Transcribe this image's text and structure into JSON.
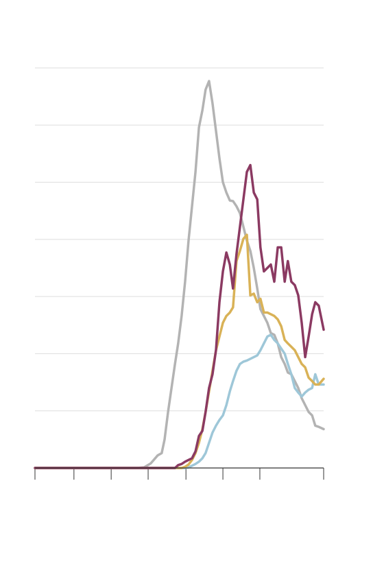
{
  "chart_data": {
    "type": "line",
    "x": [
      0,
      35.4,
      37.8,
      40.1,
      42.5,
      43.9,
      44.9,
      46.1,
      47.3,
      48.5,
      49.6,
      50.8,
      52.0,
      53.2,
      54.4,
      55.6,
      56.8,
      58.0,
      59.1,
      60.3,
      61.5,
      62.7,
      63.9,
      65.1,
      66.3,
      67.5,
      68.6,
      69.8,
      71.0,
      72.2,
      73.4,
      74.6,
      75.8,
      77.0,
      78.1,
      79.3,
      80.5,
      81.7,
      82.9,
      84.1,
      85.3,
      86.5,
      87.6,
      88.8,
      90.0,
      91.2,
      92.4,
      93.6,
      94.8,
      96.0,
      97.1,
      98.3,
      100
    ],
    "series": [
      {
        "color": "#b3b3b3",
        "values": [
          0,
          0,
          0.01,
          0.08,
          0.22,
          0.26,
          0.5,
          0.98,
          1.4,
          1.82,
          2.18,
          2.66,
          3.26,
          3.98,
          4.58,
          5.18,
          5.96,
          6.26,
          6.62,
          6.77,
          6.38,
          5.9,
          5.42,
          5,
          4.82,
          4.68,
          4.67,
          4.58,
          4.46,
          4.22,
          3.98,
          3.8,
          3.5,
          3.14,
          2.78,
          2.66,
          2.54,
          2.36,
          2.33,
          2.18,
          1.94,
          1.82,
          1.67,
          1.64,
          1.52,
          1.4,
          1.22,
          1.1,
          0.98,
          0.92,
          0.74,
          0.72,
          0.68
        ]
      },
      {
        "color": "#9ec7d8",
        "values": [
          0,
          0,
          0,
          0,
          0,
          0,
          0,
          0,
          0,
          0,
          0,
          0,
          0,
          0.01,
          0.04,
          0.07,
          0.11,
          0.17,
          0.26,
          0.44,
          0.62,
          0.74,
          0.84,
          0.92,
          1.1,
          1.34,
          1.52,
          1.7,
          1.82,
          1.86,
          1.88,
          1.91,
          1.94,
          1.97,
          2.06,
          2.18,
          2.3,
          2.33,
          2.24,
          2.18,
          2.09,
          2.0,
          1.82,
          1.64,
          1.4,
          1.32,
          1.25,
          1.32,
          1.37,
          1.4,
          1.64,
          1.46,
          1.46
        ]
      },
      {
        "color": "#d9b257",
        "values": [
          0,
          0,
          0,
          0,
          0,
          0,
          0,
          0,
          0,
          0,
          0,
          0,
          0.02,
          0.06,
          0.14,
          0.26,
          0.44,
          0.68,
          0.98,
          1.34,
          1.7,
          2.06,
          2.3,
          2.54,
          2.66,
          2.72,
          2.81,
          3.62,
          3.8,
          4.01,
          4.08,
          3.02,
          3.05,
          2.9,
          2.96,
          2.72,
          2.72,
          2.69,
          2.66,
          2.6,
          2.48,
          2.24,
          2.18,
          2.12,
          2.06,
          1.94,
          1.82,
          1.76,
          1.58,
          1.52,
          1.46,
          1.46,
          1.56
        ]
      },
      {
        "color": "#8b3a62",
        "values": [
          0,
          0,
          0,
          0,
          0,
          0,
          0,
          0,
          0,
          0,
          0.05,
          0.07,
          0.11,
          0.14,
          0.17,
          0.29,
          0.56,
          0.65,
          0.98,
          1.4,
          1.64,
          2.06,
          2.9,
          3.44,
          3.77,
          3.56,
          3.14,
          3.74,
          4.22,
          4.7,
          5.18,
          5.3,
          4.82,
          4.7,
          3.86,
          3.44,
          3.5,
          3.56,
          3.26,
          3.86,
          3.86,
          3.26,
          3.62,
          3.26,
          3.2,
          3.02,
          2.54,
          1.94,
          2.3,
          2.69,
          2.9,
          2.84,
          2.42
        ]
      }
    ],
    "xlim": [
      0,
      100
    ],
    "xticks": [
      0,
      13.5,
      26.4,
      39.2,
      52.3,
      65.1,
      77.9,
      100
    ],
    "ylim": [
      0,
      7
    ],
    "yticks": [
      0,
      1,
      2,
      3,
      4,
      5,
      6,
      7
    ],
    "grid": true
  }
}
